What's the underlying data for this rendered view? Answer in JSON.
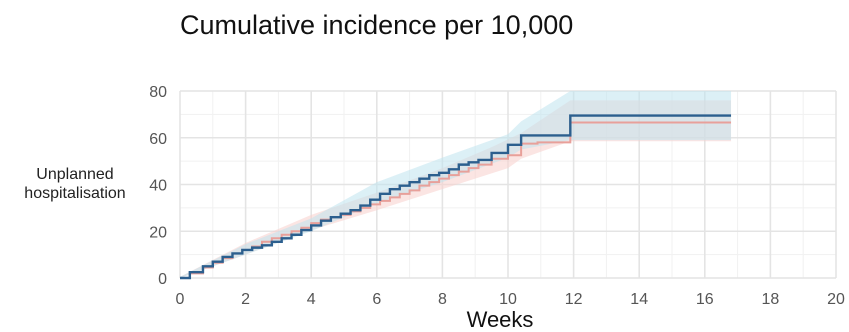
{
  "chart_data": {
    "type": "line",
    "title": "Cumulative incidence per 10,000",
    "xlabel": "Weeks",
    "ylabel": [
      "Unplanned",
      "hospitalisation"
    ],
    "xlim": [
      0,
      20
    ],
    "ylim": [
      0,
      80
    ],
    "x_ticks": [
      "0",
      "2",
      "4",
      "6",
      "8",
      "10",
      "12",
      "14",
      "16",
      "18",
      "20"
    ],
    "y_ticks": [
      "0",
      "20",
      "40",
      "60",
      "80"
    ],
    "grid": true,
    "legend": "none",
    "series": [
      {
        "color": "#e8a09a",
        "band_color": "#f7cfcc",
        "step": [
          [
            0,
            0
          ],
          [
            0.3,
            2
          ],
          [
            0.7,
            4.5
          ],
          [
            1.0,
            6.5
          ],
          [
            1.3,
            8.5
          ],
          [
            1.6,
            10.5
          ],
          [
            1.9,
            12
          ],
          [
            2.2,
            13.5
          ],
          [
            2.5,
            15.5
          ],
          [
            2.8,
            17
          ],
          [
            3.1,
            18.5
          ],
          [
            3.4,
            20
          ],
          [
            3.7,
            21.5
          ],
          [
            4.0,
            23.5
          ],
          [
            4.3,
            25
          ],
          [
            4.6,
            26
          ],
          [
            4.9,
            27
          ],
          [
            5.2,
            28.5
          ],
          [
            5.5,
            30
          ],
          [
            5.8,
            31.5
          ],
          [
            6.1,
            33
          ],
          [
            6.4,
            34.5
          ],
          [
            6.7,
            36
          ],
          [
            7.0,
            37.5
          ],
          [
            7.3,
            39.5
          ],
          [
            7.6,
            41
          ],
          [
            7.9,
            42.5
          ],
          [
            8.2,
            44
          ],
          [
            8.5,
            45.5
          ],
          [
            8.8,
            47
          ],
          [
            9.1,
            48.5
          ],
          [
            9.5,
            51
          ],
          [
            10.0,
            52.5
          ],
          [
            10.4,
            57.5
          ],
          [
            10.9,
            58
          ],
          [
            11.9,
            66.5
          ],
          [
            16.8,
            66.5
          ]
        ],
        "lower": [
          [
            0,
            0
          ],
          [
            2,
            10
          ],
          [
            4,
            20.5
          ],
          [
            6,
            29
          ],
          [
            8,
            38
          ],
          [
            10,
            47
          ],
          [
            10.4,
            51
          ],
          [
            11.9,
            58.5
          ],
          [
            16.8,
            58.5
          ]
        ],
        "upper": [
          [
            0,
            0.5
          ],
          [
            2,
            15
          ],
          [
            4,
            27
          ],
          [
            6,
            36.5
          ],
          [
            8,
            47
          ],
          [
            9.5,
            56
          ],
          [
            10.4,
            62
          ],
          [
            11.9,
            76
          ],
          [
            16.8,
            76
          ]
        ]
      },
      {
        "color": "#2c5f8e",
        "band_color": "#bfe3ee",
        "step": [
          [
            0,
            0
          ],
          [
            0.3,
            2.5
          ],
          [
            0.7,
            5
          ],
          [
            1.0,
            7
          ],
          [
            1.3,
            9
          ],
          [
            1.6,
            10.5
          ],
          [
            1.9,
            12
          ],
          [
            2.2,
            13
          ],
          [
            2.5,
            14
          ],
          [
            2.8,
            15.5
          ],
          [
            3.1,
            17
          ],
          [
            3.4,
            18.5
          ],
          [
            3.7,
            20.5
          ],
          [
            4.0,
            22.5
          ],
          [
            4.3,
            24.5
          ],
          [
            4.6,
            26
          ],
          [
            4.9,
            27.5
          ],
          [
            5.2,
            29
          ],
          [
            5.5,
            31
          ],
          [
            5.8,
            33.5
          ],
          [
            6.1,
            36
          ],
          [
            6.4,
            38
          ],
          [
            6.7,
            39.5
          ],
          [
            7.0,
            41
          ],
          [
            7.3,
            42.5
          ],
          [
            7.6,
            44
          ],
          [
            7.9,
            45
          ],
          [
            8.2,
            46.5
          ],
          [
            8.5,
            48.5
          ],
          [
            8.8,
            49.5
          ],
          [
            9.1,
            50.5
          ],
          [
            9.5,
            53.5
          ],
          [
            10.0,
            57
          ],
          [
            10.4,
            61
          ],
          [
            11.9,
            69.5
          ],
          [
            16.8,
            69.5
          ]
        ],
        "lower": [
          [
            0,
            0
          ],
          [
            2,
            10
          ],
          [
            4,
            20
          ],
          [
            6,
            32
          ],
          [
            8,
            41
          ],
          [
            10,
            51.5
          ],
          [
            10.4,
            55
          ],
          [
            11.9,
            59
          ],
          [
            16.8,
            59
          ]
        ],
        "upper": [
          [
            0,
            0.5
          ],
          [
            2,
            14.5
          ],
          [
            4,
            25.5
          ],
          [
            6,
            41
          ],
          [
            8,
            51.5
          ],
          [
            10,
            61.5
          ],
          [
            10.4,
            67
          ],
          [
            11.9,
            80
          ],
          [
            16.8,
            80
          ]
        ]
      }
    ]
  }
}
